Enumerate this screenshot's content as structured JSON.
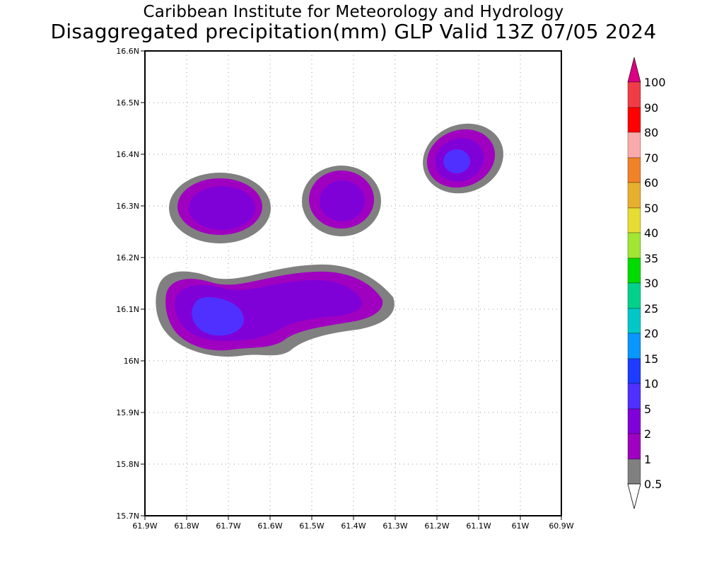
{
  "header": {
    "title_line1": "Caribbean Institute for Meteorology and Hydrology",
    "title_line2": "Disaggregated precipitation(mm) GLP Valid 13Z 07/05 2024"
  },
  "map": {
    "lat_ticks": [
      "16.6N",
      "16.5N",
      "16.4N",
      "16.3N",
      "16.2N",
      "16.1N",
      "16N",
      "15.9N",
      "15.8N",
      "15.7N"
    ],
    "lon_ticks": [
      "61.9W",
      "61.8W",
      "61.7W",
      "61.6W",
      "61.5W",
      "61.4W",
      "61.3W",
      "61.2W",
      "61.1W",
      "61W",
      "60.9W"
    ],
    "lat_range": [
      15.7,
      16.6
    ],
    "lon_range": [
      -61.9,
      -60.9
    ],
    "grid": "dotted",
    "precip_cells": [
      {
        "lon": -61.75,
        "lat": 16.1,
        "peak_mm": 5,
        "area": "southwest band"
      },
      {
        "lon": -61.45,
        "lat": 16.12,
        "peak_mm": 2,
        "area": "central band"
      },
      {
        "lon": -61.72,
        "lat": 16.3,
        "peak_mm": 2,
        "area": "northwest cell"
      },
      {
        "lon": -61.43,
        "lat": 16.31,
        "peak_mm": 2,
        "area": "north-central cell"
      },
      {
        "lon": -61.15,
        "lat": 16.39,
        "peak_mm": 5,
        "area": "northeast cell"
      }
    ]
  },
  "legend": {
    "levels": [
      "0.5",
      "1",
      "2",
      "5",
      "10",
      "15",
      "20",
      "25",
      "30",
      "35",
      "40",
      "50",
      "60",
      "70",
      "80",
      "90",
      "100"
    ],
    "colors": {
      "below_0_5": "#ffffff",
      "0_5_to_1": "#808080",
      "1_to_2": "#a000c0",
      "2_to_5": "#8000d8",
      "5_to_10": "#5030ff",
      "10_to_15": "#1e3cff",
      "15_to_20": "#0a96ff",
      "20_to_25": "#00c8c8",
      "25_to_30": "#00d28c",
      "30_to_35": "#00dc00",
      "35_to_40": "#a0e632",
      "40_to_50": "#e6dc32",
      "50_to_60": "#e6af2d",
      "60_to_70": "#f08228",
      "70_to_80": "#faaaaa",
      "80_to_90": "#ff0000",
      "90_to_100": "#f03c46",
      "above_100": "#dc0082"
    }
  }
}
